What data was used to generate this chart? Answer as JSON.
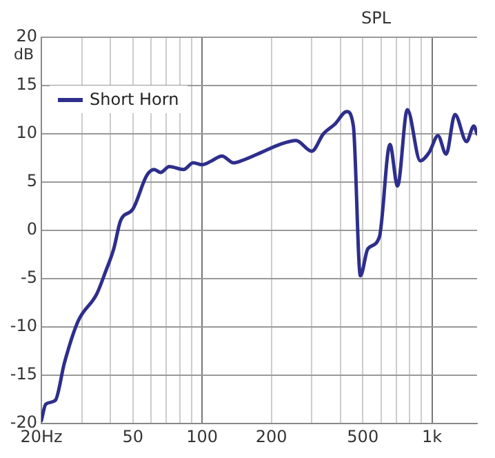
{
  "chart_data": {
    "type": "line",
    "title": "SPL",
    "ylabel": "dB",
    "x": [
      20,
      20.9,
      23,
      25.2,
      28.9,
      34.8,
      38,
      41.3,
      44.2,
      50,
      57.5,
      61.9,
      66,
      72,
      83,
      91.5,
      100,
      110,
      122,
      137,
      148,
      182,
      218,
      256,
      300,
      337,
      378,
      426,
      455,
      488,
      526,
      590,
      656,
      708,
      781,
      889,
      973,
      1061,
      1152,
      1258,
      1413,
      1520,
      1570
    ],
    "series": [
      {
        "name": "Short Horn",
        "color": "#2e2e8c",
        "values": [
          -19.7,
          -18,
          -17.6,
          -13.7,
          -9.4,
          -6.6,
          -4.3,
          -1.9,
          1,
          2.2,
          5.7,
          6.3,
          6,
          6.6,
          6.3,
          7,
          6.8,
          7.2,
          7.7,
          7,
          7.2,
          8.1,
          8.9,
          9.3,
          8.2,
          10,
          11,
          12.3,
          10.8,
          -4.7,
          -1.9,
          -0.7,
          8.9,
          4.6,
          12.5,
          7.2,
          8.1,
          9.8,
          7.9,
          12,
          9.2,
          10.8,
          10
        ]
      }
    ],
    "log": "x",
    "xlim": [
      20,
      1570
    ],
    "ylim": [
      -20,
      20
    ],
    "xticks": [
      {
        "value": 20,
        "label": "20Hz"
      },
      {
        "value": 30,
        "label": null
      },
      {
        "value": 40,
        "label": null
      },
      50,
      {
        "value": 60,
        "label": null
      },
      {
        "value": 70,
        "label": null
      },
      {
        "value": 80,
        "label": null
      },
      {
        "value": 90,
        "label": null
      },
      100,
      200,
      {
        "value": 300,
        "label": null
      },
      {
        "value": 400,
        "label": null
      },
      500,
      {
        "value": 600,
        "label": null
      },
      {
        "value": 700,
        "label": null
      },
      {
        "value": 800,
        "label": null
      },
      {
        "value": 900,
        "label": null
      },
      {
        "value": 1000,
        "label": "1k"
      }
    ],
    "yticks": [
      -20,
      -15,
      -10,
      -5,
      0,
      5,
      10,
      15,
      20
    ],
    "grid": true,
    "legend": "top left",
    "marker": "none",
    "line_style": "solid"
  }
}
